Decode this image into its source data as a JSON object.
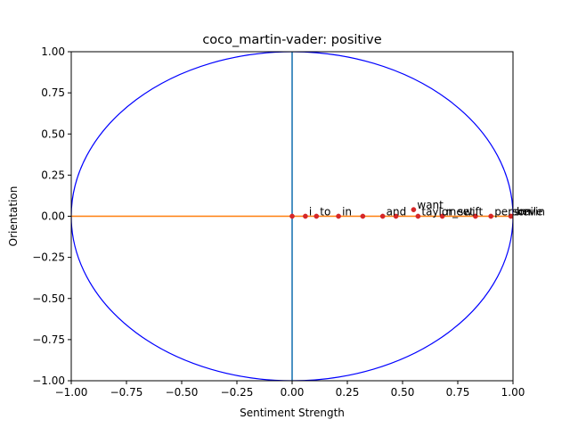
{
  "chart_data": {
    "type": "scatter",
    "title": "coco_martin-vader: positive",
    "xlabel": "Sentiment Strength",
    "ylabel": "Orientation",
    "xlim": [
      -1.0,
      1.0
    ],
    "ylim": [
      -1.0,
      1.0
    ],
    "xticks": [
      "−1.00",
      "−0.75",
      "−0.50",
      "−0.25",
      "0.00",
      "0.25",
      "0.50",
      "0.75",
      "1.00"
    ],
    "yticks": [
      "1.00",
      "0.75",
      "0.50",
      "0.25",
      "0.00",
      "−0.25",
      "−0.50",
      "−0.75",
      "−1.00"
    ],
    "xtick_values": [
      -1.0,
      -0.75,
      -0.5,
      -0.25,
      0.0,
      0.25,
      0.5,
      0.75,
      1.0
    ],
    "ytick_values": [
      1.0,
      0.75,
      0.5,
      0.25,
      0.0,
      -0.25,
      -0.5,
      -0.75,
      -1.0
    ],
    "circle": {
      "center": [
        0,
        0
      ],
      "radius": 1.0,
      "color": "#0000ff"
    },
    "reference_lines": {
      "horizontal": {
        "y": 0,
        "color": "#ff7f0e"
      },
      "vertical": {
        "x": 0,
        "color": "#1f77b4"
      }
    },
    "point_color": "#d62728",
    "points": [
      {
        "label": "",
        "x": 0.0,
        "y": 0.0
      },
      {
        "label": "i",
        "x": 0.06,
        "y": 0.0
      },
      {
        "label": "to",
        "x": 0.11,
        "y": 0.0
      },
      {
        "label": "in",
        "x": 0.21,
        "y": 0.0
      },
      {
        "label": "",
        "x": 0.32,
        "y": 0.0
      },
      {
        "label": "and",
        "x": 0.41,
        "y": 0.0
      },
      {
        "label": "",
        "x": 0.47,
        "y": 0.0
      },
      {
        "label": "want",
        "x": 0.55,
        "y": 0.04
      },
      {
        "label": "taylor_swift",
        "x": 0.57,
        "y": 0.0
      },
      {
        "label": "meet",
        "x": 0.68,
        "y": 0.0
      },
      {
        "label": "",
        "x": 0.83,
        "y": 0.0
      },
      {
        "label": "person",
        "x": 0.9,
        "y": 0.0
      },
      {
        "label": "smile",
        "x": 0.99,
        "y": 0.0
      },
      {
        "label": "kevin",
        "x": 1.0,
        "y": 0.0
      }
    ]
  }
}
